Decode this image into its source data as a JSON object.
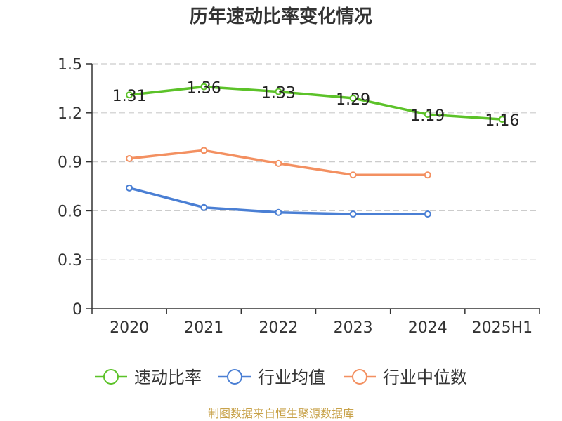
{
  "chart_data": {
    "type": "line",
    "title": "历年速动比率变化情况",
    "categories": [
      "2020",
      "2021",
      "2022",
      "2023",
      "2024",
      "2025H1"
    ],
    "y_ticks": [
      "0",
      "0.3",
      "0.6",
      "0.9",
      "1.2",
      "1.5"
    ],
    "ylim": [
      0,
      1.5
    ],
    "grid": true,
    "legend_position": "bottom",
    "series": [
      {
        "name": "速动比率",
        "color": "#5cc229",
        "values": [
          1.31,
          1.36,
          1.33,
          1.29,
          1.19,
          1.16
        ],
        "labels": [
          "1.31",
          "1.36",
          "1.33",
          "1.29",
          "1.19",
          "1.16"
        ]
      },
      {
        "name": "行业均值",
        "color": "#4a7fd4",
        "values": [
          0.74,
          0.62,
          0.59,
          0.58,
          0.58,
          null
        ]
      },
      {
        "name": "行业中位数",
        "color": "#f39061",
        "values": [
          0.92,
          0.97,
          0.89,
          0.82,
          0.82,
          null
        ]
      }
    ],
    "source": "制图数据来自恒生聚源数据库"
  }
}
